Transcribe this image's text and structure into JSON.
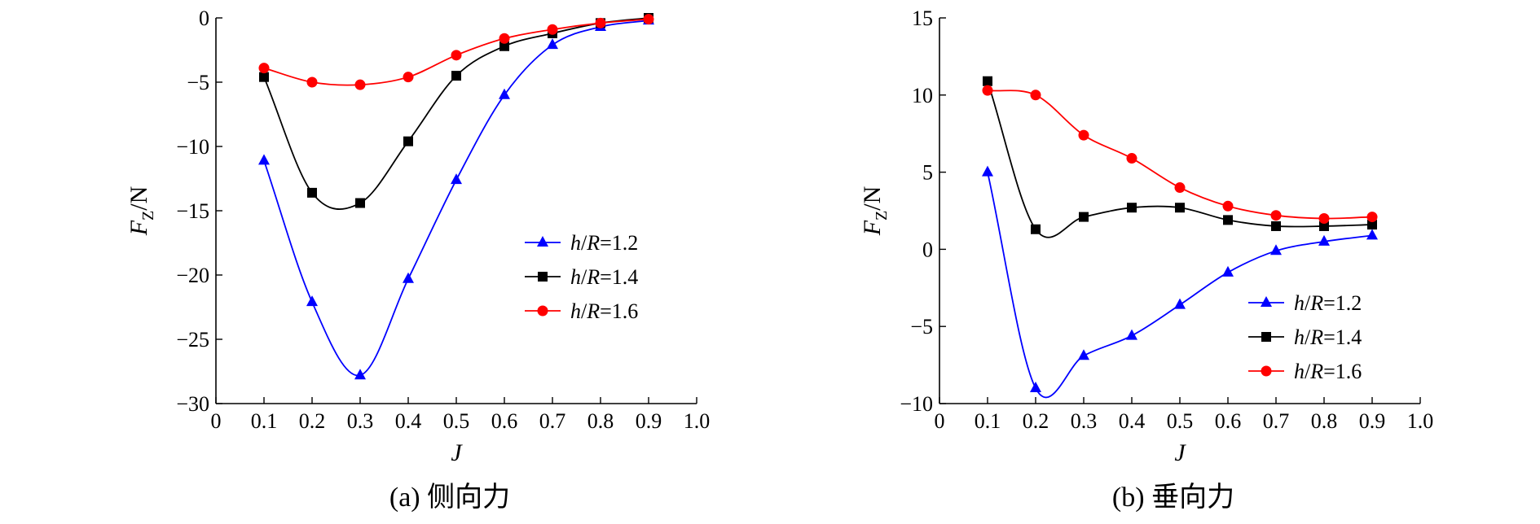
{
  "chart_data": [
    {
      "type": "line",
      "caption": "(a) 侧向力",
      "xlabel": "J",
      "ylabel": "F_Z/N",
      "xlim": [
        0,
        1.0
      ],
      "ylim": [
        -30,
        0
      ],
      "xticks": [
        "0",
        "0.1",
        "0.2",
        "0.3",
        "0.4",
        "0.5",
        "0.6",
        "0.7",
        "0.8",
        "0.9",
        "1.0"
      ],
      "yticks": [
        "0",
        "-5",
        "-10",
        "-15",
        "-20",
        "-25",
        "-30"
      ],
      "legend_position": "center-right",
      "x": [
        0.1,
        0.2,
        0.3,
        0.4,
        0.5,
        0.6,
        0.7,
        0.8,
        0.9
      ],
      "series": [
        {
          "name": "h/R=1.2",
          "color": "#0000ff",
          "marker": "triangle",
          "values": [
            -11.1,
            -22.1,
            -27.8,
            -20.3,
            -12.6,
            -6.0,
            -2.1,
            -0.7,
            -0.2
          ]
        },
        {
          "name": "h/R=1.4",
          "color": "#000000",
          "marker": "square",
          "values": [
            -4.6,
            -13.6,
            -14.4,
            -9.6,
            -4.5,
            -2.2,
            -1.2,
            -0.4,
            0.0
          ]
        },
        {
          "name": "h/R=1.6",
          "color": "#ff0000",
          "marker": "circle",
          "values": [
            -3.9,
            -5.0,
            -5.2,
            -4.6,
            -2.9,
            -1.6,
            -0.9,
            -0.4,
            -0.1
          ]
        }
      ]
    },
    {
      "type": "line",
      "caption": "(b) 垂向力",
      "xlabel": "J",
      "ylabel": "F_Z/N",
      "xlim": [
        0,
        1.0
      ],
      "ylim": [
        -10,
        15
      ],
      "xticks": [
        "0",
        "0.1",
        "0.2",
        "0.3",
        "0.4",
        "0.5",
        "0.6",
        "0.7",
        "0.8",
        "0.9",
        "1.0"
      ],
      "yticks": [
        "15",
        "10",
        "5",
        "0",
        "-5",
        "-10"
      ],
      "legend_position": "lower-right",
      "x": [
        0.1,
        0.2,
        0.3,
        0.4,
        0.5,
        0.6,
        0.7,
        0.8,
        0.9
      ],
      "series": [
        {
          "name": "h/R=1.2",
          "color": "#0000ff",
          "marker": "triangle",
          "values": [
            5.0,
            -9.0,
            -6.9,
            -5.6,
            -3.6,
            -1.5,
            -0.1,
            0.5,
            0.9
          ]
        },
        {
          "name": "h/R=1.4",
          "color": "#000000",
          "marker": "square",
          "values": [
            10.9,
            1.3,
            2.1,
            2.7,
            2.7,
            1.9,
            1.5,
            1.5,
            1.6
          ]
        },
        {
          "name": "h/R=1.6",
          "color": "#ff0000",
          "marker": "circle",
          "values": [
            10.3,
            10.0,
            7.4,
            5.9,
            4.0,
            2.8,
            2.2,
            2.0,
            2.1
          ]
        }
      ]
    }
  ]
}
